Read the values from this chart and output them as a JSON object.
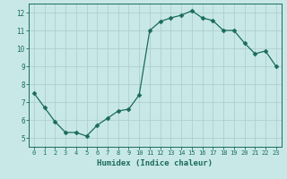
{
  "x": [
    0,
    1,
    2,
    3,
    4,
    5,
    6,
    7,
    8,
    9,
    10,
    11,
    12,
    13,
    14,
    15,
    16,
    17,
    18,
    19,
    20,
    21,
    22,
    23
  ],
  "y": [
    7.5,
    6.7,
    5.9,
    5.3,
    5.3,
    5.1,
    5.7,
    6.1,
    6.5,
    6.6,
    7.4,
    11.0,
    11.5,
    11.7,
    11.85,
    12.1,
    11.7,
    11.55,
    11.0,
    11.0,
    10.3,
    9.7,
    9.85,
    9.0
  ],
  "line_color": "#1a6b5a",
  "marker": "D",
  "marker_size": 2.5,
  "bg_color": "#c8e8e8",
  "grid_color": "#b0d0d0",
  "xlabel": "Humidex (Indice chaleur)",
  "xlim": [
    -0.5,
    23.5
  ],
  "ylim": [
    4.5,
    12.5
  ],
  "yticks": [
    5,
    6,
    7,
    8,
    9,
    10,
    11,
    12
  ],
  "xticks": [
    0,
    1,
    2,
    3,
    4,
    5,
    6,
    7,
    8,
    9,
    10,
    11,
    12,
    13,
    14,
    15,
    16,
    17,
    18,
    19,
    20,
    21,
    22,
    23
  ],
  "tick_color": "#1a6b5a",
  "label_color": "#1a6b5a",
  "spine_color": "#1a6b5a"
}
